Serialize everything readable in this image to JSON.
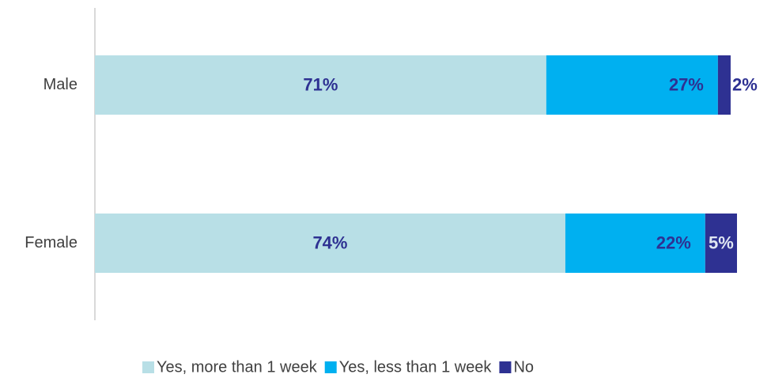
{
  "chart_data": {
    "type": "stacked-bar-horizontal",
    "categories": [
      "Male",
      "Female"
    ],
    "series": [
      {
        "name": "Yes, more than 1 week",
        "color": "#b8dfe6",
        "values": [
          71,
          74
        ],
        "value_labels": [
          "71%",
          "74%"
        ]
      },
      {
        "name": "Yes, less than 1 week",
        "color": "#00b0f0",
        "values": [
          27,
          22
        ],
        "value_labels": [
          "27%",
          "22%"
        ]
      },
      {
        "name": "No",
        "color": "#2e3192",
        "values": [
          2,
          5
        ],
        "value_labels": [
          "2%",
          "5%"
        ]
      }
    ]
  }
}
